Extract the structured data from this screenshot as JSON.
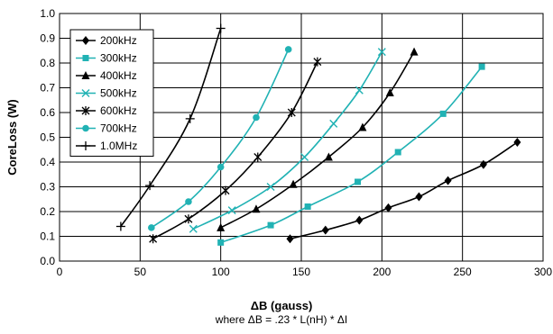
{
  "chart_data": {
    "type": "line",
    "title": "",
    "xlabel": "ΔB (gauss)",
    "xnote": "where ΔB = .23 * L(nH) * ΔI",
    "ylabel": "CoreLoss (W)",
    "xlim": [
      0,
      300
    ],
    "ylim": [
      0,
      1.0
    ],
    "xticks": [
      0,
      50,
      100,
      150,
      200,
      250,
      300
    ],
    "yticks": [
      0.0,
      0.1,
      0.2,
      0.3,
      0.4,
      0.5,
      0.6,
      0.7,
      0.8,
      0.9,
      1.0
    ],
    "ytick_labels": [
      "0.0",
      "0.1",
      "0.2",
      "0.3",
      "0.4",
      "0.5",
      "0.6",
      "0.7",
      "0.8",
      "0.9",
      "1.0"
    ],
    "grid": "vertical and horizontal",
    "legend_position": "top-left",
    "series": [
      {
        "name": "200kHz",
        "color": "#000000",
        "marker": "diamond",
        "x": [
          143,
          165,
          186,
          204,
          223,
          241,
          263,
          284
        ],
        "y": [
          0.09,
          0.125,
          0.165,
          0.215,
          0.26,
          0.325,
          0.39,
          0.48
        ]
      },
      {
        "name": "300kHz",
        "color": "#21b2b4",
        "marker": "square",
        "x": [
          100,
          131,
          154,
          185,
          210,
          238,
          262
        ],
        "y": [
          0.075,
          0.145,
          0.22,
          0.32,
          0.44,
          0.595,
          0.785
        ]
      },
      {
        "name": "400kHz",
        "color": "#000000",
        "marker": "triangle",
        "x": [
          100,
          122,
          145,
          167,
          188,
          205,
          220
        ],
        "y": [
          0.135,
          0.21,
          0.31,
          0.42,
          0.54,
          0.68,
          0.845
        ]
      },
      {
        "name": "500kHz",
        "color": "#21b2b4",
        "marker": "x",
        "x": [
          83,
          107,
          131,
          152,
          170,
          186,
          200
        ],
        "y": [
          0.13,
          0.205,
          0.3,
          0.42,
          0.555,
          0.69,
          0.845
        ]
      },
      {
        "name": "600kHz",
        "color": "#000000",
        "marker": "star",
        "x": [
          58,
          80,
          103,
          123,
          144,
          160
        ],
        "y": [
          0.09,
          0.17,
          0.285,
          0.42,
          0.6,
          0.805
        ]
      },
      {
        "name": "700kHz",
        "color": "#21b2b4",
        "marker": "circle",
        "x": [
          57,
          80,
          100,
          122,
          142
        ],
        "y": [
          0.135,
          0.24,
          0.38,
          0.58,
          0.855
        ]
      },
      {
        "name": "1.0MHz",
        "color": "#000000",
        "marker": "plus",
        "x": [
          38,
          56,
          81,
          100
        ],
        "y": [
          0.14,
          0.305,
          0.575,
          0.94
        ]
      }
    ]
  }
}
